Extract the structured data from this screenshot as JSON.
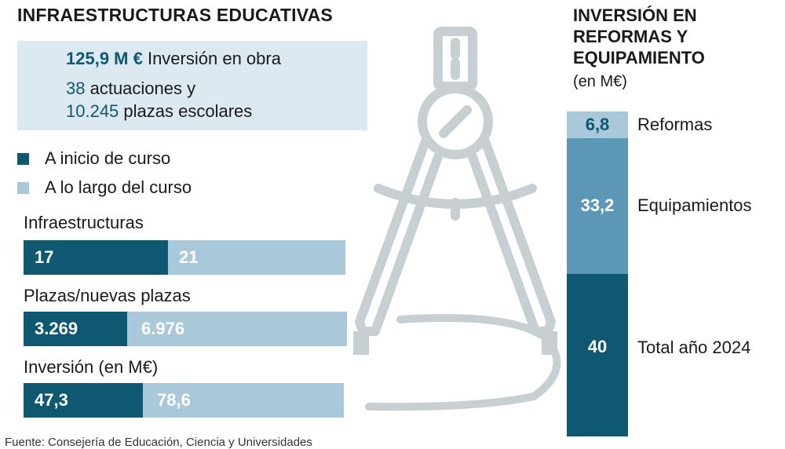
{
  "title": "INFRAESTRUCTURAS EDUCATIVAS",
  "summary": {
    "line1_num": "125,9 M €",
    "line1_text": " Inversión en obra",
    "line2_num": "38",
    "line2_text": " actuaciones y",
    "line3_num": "10.245",
    "line3_text": " plazas escolares"
  },
  "legend": [
    {
      "label": "A inicio de curso",
      "color": "#0e5872"
    },
    {
      "label": "A lo largo del curso",
      "color": "#a9c8da"
    }
  ],
  "colors": {
    "dark": "#0e5872",
    "mid": "#5c97b6",
    "light": "#a9c8da",
    "pale": "#dde9f0",
    "illustration": "#c8cfd3"
  },
  "chart_data": [
    {
      "type": "bar",
      "orientation": "horizontal",
      "stacked": true,
      "title": "INFRAESTRUCTURAS EDUCATIVAS",
      "categories": [
        "Infraestructuras",
        "Plazas/nuevas plazas",
        "Inversión (en M€)"
      ],
      "category_labels": [
        "Infraestructuras",
        "Plazas/nuevas plazas",
        "Inversión (en M€)"
      ],
      "series": [
        {
          "name": "A inicio de curso",
          "values": [
            17,
            3269,
            47.3
          ],
          "labels": [
            "17",
            "3.269",
            "47,3"
          ]
        },
        {
          "name": "A lo largo del curso",
          "values": [
            21,
            6976,
            78.6
          ],
          "labels": [
            "21",
            "6.976",
            "78,6"
          ]
        }
      ]
    },
    {
      "type": "bar",
      "stacked": true,
      "title": "INVERSIÓN EN REFORMAS Y EQUIPAMIENTO",
      "subtitle": "(en M€)",
      "categories": [
        "Reformas",
        "Equipamientos",
        "Total año 2024"
      ],
      "values": [
        6.8,
        33.2,
        40
      ],
      "labels": [
        "6,8",
        "33,2",
        "40"
      ]
    }
  ],
  "side": {
    "title_lines": [
      "INVERSIÓN EN",
      "REFORMAS Y",
      "EQUIPAMIENTO"
    ],
    "subtitle": "(en M€)"
  },
  "source": "Fuente: Consejería de Educación, Ciencia y Universidades"
}
